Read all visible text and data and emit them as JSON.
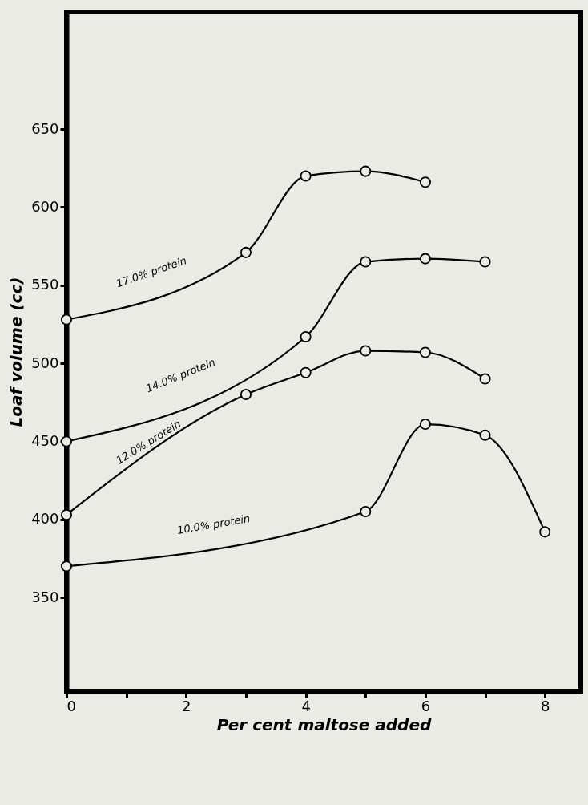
{
  "chart_data": {
    "type": "line",
    "xlabel": "Per cent maltose added",
    "ylabel": "Loaf volume (cc)",
    "xlim": [
      0,
      8.6
    ],
    "xticks": [
      0,
      {
        "value": 1,
        "label": null
      },
      2,
      {
        "value": 3,
        "label": null
      },
      4,
      {
        "value": 5,
        "label": null
      },
      6,
      {
        "value": 7,
        "label": null
      },
      8
    ],
    "ylim": [
      290,
      725
    ],
    "yticks": [
      350,
      400,
      450,
      500,
      550,
      600,
      650
    ],
    "grid": false,
    "legend": false,
    "marker": "circle",
    "line_style": "solid",
    "series": [
      {
        "name": "17.0% protein",
        "color": "#000000",
        "x": [
          0,
          3,
          4,
          5,
          6
        ],
        "values": [
          528,
          571,
          620,
          623,
          616
        ]
      },
      {
        "name": "14.0% protein",
        "color": "#000000",
        "x": [
          0,
          4,
          5,
          6,
          7
        ],
        "values": [
          450,
          517,
          565,
          567,
          565
        ]
      },
      {
        "name": "12.0% protein",
        "color": "#000000",
        "x": [
          0,
          3,
          4,
          5,
          6,
          7
        ],
        "values": [
          403,
          480,
          494,
          508,
          507,
          490
        ]
      },
      {
        "name": "10.0% protein",
        "color": "#000000",
        "x": [
          0,
          5,
          6,
          7,
          8
        ],
        "values": [
          370,
          405,
          461,
          454,
          392
        ]
      }
    ]
  }
}
